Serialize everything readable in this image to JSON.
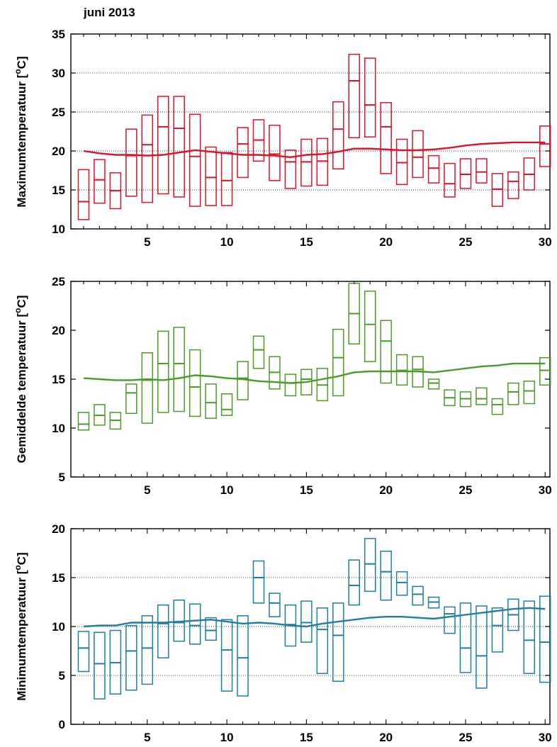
{
  "page_title": "juni 2013",
  "colors": {
    "max": "#d7142a",
    "avg": "#4d9a2a",
    "min": "#1f7f9f",
    "grid": "#000000",
    "axis": "#000000"
  },
  "chart_data": [
    {
      "type": "box-range",
      "name": "maximum",
      "ylabel": "Maximumtemperatuur [°C]",
      "ylabel_main": "Maximumtemperatuur [",
      "ylabel_sup": "o",
      "ylabel_end": "C]",
      "xlim": [
        0.2,
        30.3
      ],
      "ylim": [
        10,
        35
      ],
      "yticks": [
        10,
        15,
        20,
        25,
        30,
        35
      ],
      "xticks": [
        5,
        10,
        15,
        20,
        25,
        30
      ],
      "grid": true,
      "days": [
        1,
        2,
        3,
        4,
        5,
        6,
        7,
        8,
        9,
        10,
        11,
        12,
        13,
        14,
        15,
        16,
        17,
        18,
        19,
        20,
        21,
        22,
        23,
        24,
        25,
        26,
        27,
        28,
        29,
        30
      ],
      "low": [
        11.2,
        13.3,
        12.6,
        14.2,
        13.4,
        14.5,
        14.1,
        12.9,
        13.0,
        13.0,
        16.6,
        18.7,
        16.2,
        15.2,
        15.5,
        15.6,
        17.7,
        21.7,
        21.8,
        17.1,
        15.7,
        16.6,
        15.9,
        14.1,
        15.2,
        15.9,
        12.9,
        13.9,
        15.0,
        18.0
      ],
      "mid": [
        13.5,
        16.3,
        14.9,
        19.4,
        20.8,
        23.1,
        22.9,
        19.3,
        16.6,
        16.2,
        20.9,
        21.4,
        19.6,
        18.6,
        18.6,
        18.7,
        22.8,
        29.0,
        25.9,
        23.1,
        18.5,
        19.2,
        17.8,
        15.8,
        17.0,
        17.3,
        15.1,
        16.1,
        17.0,
        20.9
      ],
      "high": [
        17.6,
        18.9,
        17.2,
        22.8,
        24.6,
        27.0,
        27.0,
        24.7,
        20.5,
        19.8,
        23.0,
        24.0,
        23.3,
        20.1,
        21.5,
        21.6,
        26.3,
        32.4,
        31.9,
        26.2,
        21.5,
        22.6,
        19.4,
        18.4,
        19.0,
        19.0,
        17.1,
        17.3,
        19.1,
        23.2
      ],
      "normal": [
        20.0,
        19.7,
        19.5,
        19.5,
        19.4,
        19.5,
        19.8,
        20.1,
        19.9,
        19.7,
        19.5,
        19.5,
        19.4,
        19.2,
        19.5,
        19.6,
        19.9,
        20.3,
        20.3,
        20.2,
        20.1,
        20.1,
        20.2,
        20.4,
        20.7,
        20.9,
        21.0,
        21.1,
        21.1,
        21.1
      ]
    },
    {
      "type": "box-range",
      "name": "gemiddeld",
      "ylabel": "Gemiddelde temperatuur [°C]",
      "ylabel_main": "Gemiddelde temperatuur [",
      "ylabel_sup": "o",
      "ylabel_end": "C]",
      "xlim": [
        0.2,
        30.3
      ],
      "ylim": [
        5,
        25
      ],
      "yticks": [
        5,
        10,
        15,
        20,
        25
      ],
      "xticks": [
        5,
        10,
        15,
        20,
        25,
        30
      ],
      "grid": false,
      "days": [
        1,
        2,
        3,
        4,
        5,
        6,
        7,
        8,
        9,
        10,
        11,
        12,
        13,
        14,
        15,
        16,
        17,
        18,
        19,
        20,
        21,
        22,
        23,
        24,
        25,
        26,
        27,
        28,
        29,
        30
      ],
      "low": [
        9.8,
        10.3,
        9.9,
        11.5,
        10.5,
        11.6,
        11.7,
        11.2,
        11.0,
        11.3,
        12.9,
        16.1,
        14.0,
        13.3,
        13.4,
        12.8,
        13.3,
        18.6,
        16.8,
        14.6,
        14.4,
        14.2,
        14.0,
        12.3,
        12.2,
        12.4,
        11.4,
        12.4,
        12.5,
        14.4
      ],
      "mid": [
        10.4,
        11.3,
        10.8,
        13.6,
        14.9,
        16.6,
        16.6,
        14.2,
        12.6,
        11.9,
        15.1,
        18.0,
        15.7,
        14.6,
        15.0,
        14.4,
        17.2,
        21.7,
        20.6,
        18.9,
        15.9,
        16.0,
        14.6,
        13.1,
        13.0,
        13.0,
        12.4,
        13.7,
        13.8,
        15.9
      ],
      "high": [
        11.6,
        12.4,
        11.6,
        14.5,
        17.7,
        19.9,
        20.3,
        18.0,
        14.5,
        13.5,
        16.8,
        19.4,
        17.3,
        15.5,
        16.0,
        16.1,
        20.1,
        24.8,
        24.0,
        21.0,
        17.5,
        17.3,
        15.0,
        13.9,
        13.7,
        14.1,
        13.0,
        14.6,
        14.8,
        17.2
      ],
      "normal": [
        15.1,
        15.0,
        14.9,
        14.9,
        15.0,
        14.9,
        15.1,
        15.4,
        15.3,
        15.1,
        15.0,
        14.8,
        14.7,
        14.6,
        14.7,
        15.0,
        15.3,
        15.7,
        15.8,
        15.8,
        15.8,
        15.8,
        15.7,
        15.9,
        16.1,
        16.3,
        16.4,
        16.6,
        16.6,
        16.6
      ]
    },
    {
      "type": "box-range",
      "name": "minimum",
      "ylabel": "Minimumtemperatuur [°C]",
      "ylabel_main": "Minimumtemperatuur [",
      "ylabel_sup": "o",
      "ylabel_end": "C]",
      "xlim": [
        0.2,
        30.3
      ],
      "ylim": [
        0,
        20
      ],
      "yticks": [
        0,
        5,
        10,
        15,
        20
      ],
      "xticks": [
        5,
        10,
        15,
        20,
        25,
        30
      ],
      "grid": true,
      "days": [
        1,
        2,
        3,
        4,
        5,
        6,
        7,
        8,
        9,
        10,
        11,
        12,
        13,
        14,
        15,
        16,
        17,
        18,
        19,
        20,
        21,
        22,
        23,
        24,
        25,
        26,
        27,
        28,
        29,
        30
      ],
      "low": [
        5.4,
        2.6,
        3.1,
        3.5,
        4.1,
        6.8,
        8.5,
        8.2,
        8.6,
        3.4,
        2.9,
        12.4,
        11.0,
        8.0,
        8.4,
        5.2,
        4.4,
        12.2,
        13.6,
        12.7,
        13.2,
        12.2,
        11.9,
        9.3,
        5.3,
        3.7,
        7.4,
        9.6,
        5.2,
        4.3
      ],
      "mid": [
        7.8,
        6.2,
        6.3,
        7.5,
        7.8,
        10.3,
        10.4,
        10.1,
        9.6,
        7.6,
        6.8,
        15.0,
        12.4,
        10.2,
        10.4,
        9.7,
        9.1,
        14.2,
        16.4,
        15.6,
        14.5,
        13.3,
        12.5,
        11.3,
        7.8,
        7.0,
        10.1,
        11.2,
        8.6,
        8.4
      ],
      "high": [
        9.5,
        9.4,
        9.6,
        10.1,
        11.1,
        12.2,
        12.7,
        12.3,
        10.9,
        10.7,
        11.1,
        16.7,
        13.4,
        12.2,
        12.6,
        11.9,
        12.4,
        16.8,
        19.0,
        17.7,
        15.6,
        14.1,
        13.0,
        12.0,
        12.4,
        12.1,
        11.9,
        12.8,
        12.6,
        13.1
      ],
      "normal": [
        10.0,
        10.1,
        10.1,
        10.4,
        10.4,
        10.4,
        10.5,
        10.6,
        10.7,
        10.5,
        10.3,
        10.4,
        10.3,
        10.1,
        10.0,
        10.3,
        10.5,
        10.7,
        10.9,
        11.0,
        11.0,
        10.9,
        10.8,
        11.0,
        11.2,
        11.4,
        11.6,
        11.8,
        11.9,
        11.8
      ]
    }
  ]
}
